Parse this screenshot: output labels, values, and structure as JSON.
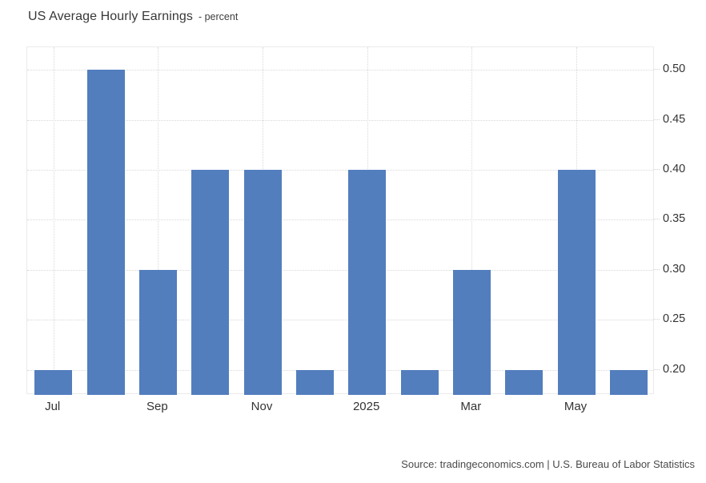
{
  "header": {
    "title": "US Average Hourly Earnings",
    "subtitle": "- percent"
  },
  "footer": {
    "source": "Source: tradingeconomics.com | U.S. Bureau of Labor Statistics"
  },
  "colors": {
    "bar": "#527EBE",
    "gridline": "#d9d9d9",
    "plot_border": "#ebebeb",
    "title_text": "#383838",
    "tick_text": "#333333",
    "source_text": "#4a4a4a"
  },
  "chart_data": {
    "type": "bar",
    "title": "US Average Hourly Earnings",
    "ylabel": "percent",
    "values": [
      0.2,
      0.5,
      0.3,
      0.4,
      0.4,
      0.2,
      0.4,
      0.2,
      0.3,
      0.2,
      0.4,
      0.2
    ],
    "x_tick_labels": [
      {
        "index": 0,
        "label": "Jul"
      },
      {
        "index": 2,
        "label": "Sep"
      },
      {
        "index": 4,
        "label": "Nov"
      },
      {
        "index": 6,
        "label": "2025"
      },
      {
        "index": 8,
        "label": "Mar"
      },
      {
        "index": 10,
        "label": "May"
      }
    ],
    "y_ticks": [
      0.2,
      0.25,
      0.3,
      0.35,
      0.4,
      0.45,
      0.5
    ],
    "y_tick_format": "2dp",
    "y_axis_side": "right",
    "ylim": [
      0.175,
      0.5225
    ],
    "grid": true,
    "legend": false
  }
}
